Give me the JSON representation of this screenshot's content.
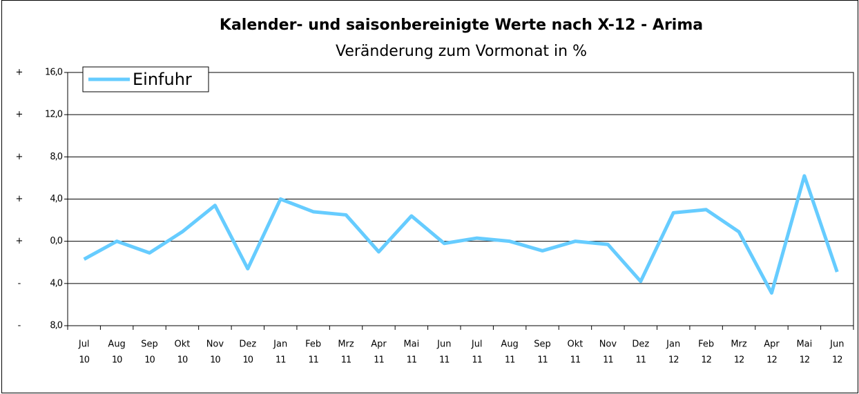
{
  "chart_data": {
    "type": "line",
    "title": "Kalender- und saisonbereinigte Werte nach X-12 - Arima",
    "subtitle": "Veränderung zum Vormonat in %",
    "categories": [
      [
        "Jul",
        "10"
      ],
      [
        "Aug",
        "10"
      ],
      [
        "Sep",
        "10"
      ],
      [
        "Okt",
        "10"
      ],
      [
        "Nov",
        "10"
      ],
      [
        "Dez",
        "10"
      ],
      [
        "Jan",
        "11"
      ],
      [
        "Feb",
        "11"
      ],
      [
        "Mrz",
        "11"
      ],
      [
        "Apr",
        "11"
      ],
      [
        "Mai",
        "11"
      ],
      [
        "Jun",
        "11"
      ],
      [
        "Jul",
        "11"
      ],
      [
        "Aug",
        "11"
      ],
      [
        "Sep",
        "11"
      ],
      [
        "Okt",
        "11"
      ],
      [
        "Nov",
        "11"
      ],
      [
        "Dez",
        "11"
      ],
      [
        "Jan",
        "12"
      ],
      [
        "Feb",
        "12"
      ],
      [
        "Mrz",
        "12"
      ],
      [
        "Apr",
        "12"
      ],
      [
        "Mai",
        "12"
      ],
      [
        "Jun",
        "12"
      ]
    ],
    "series": [
      {
        "name": "Einfuhr",
        "color": "#66ccff",
        "values": [
          -1.7,
          0.0,
          -1.1,
          0.9,
          3.4,
          -2.6,
          4.0,
          2.8,
          2.5,
          -1.0,
          2.4,
          -0.2,
          0.3,
          0.0,
          -0.9,
          0.0,
          -0.3,
          -3.8,
          2.7,
          3.0,
          0.9,
          -4.9,
          6.2,
          -2.9
        ]
      }
    ],
    "ylim": [
      -8,
      16
    ],
    "yticks": [
      {
        "value": -8,
        "label": "8,0",
        "sign": "-"
      },
      {
        "value": -4,
        "label": "4,0",
        "sign": "-"
      },
      {
        "value": 0,
        "label": "0,0",
        "sign": "+"
      },
      {
        "value": 4,
        "label": "4,0",
        "sign": "+"
      },
      {
        "value": 8,
        "label": "8,0",
        "sign": "+"
      },
      {
        "value": 12,
        "label": "12,0",
        "sign": "+"
      },
      {
        "value": 16,
        "label": "16,0",
        "sign": "+"
      }
    ],
    "grid": true,
    "legend": "top-left"
  }
}
